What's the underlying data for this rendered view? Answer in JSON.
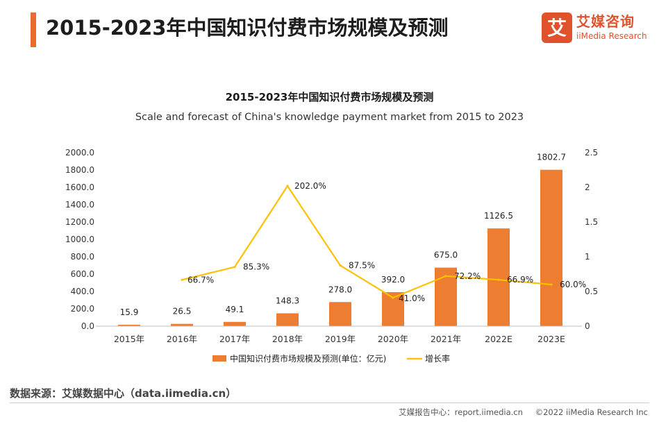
{
  "header": {
    "title": "2015-2023年中国知识付费市场规模及预测",
    "logo_cn": "艾媒咨询",
    "logo_en": "iiMedia Research",
    "accent_color": "#ec6a2c"
  },
  "source": "数据来源：艾媒数据中心（data.iimedia.cn）",
  "footer": {
    "report": "艾媒报告中心：report.iimedia.cn",
    "copyright": "©2022  iiMedia Research  Inc"
  },
  "chart_data": {
    "type": "bar",
    "title": "2015-2023年中国知识付费市场规模及预测",
    "subtitle": "Scale and forecast of China's knowledge payment market from 2015 to 2023",
    "categories": [
      "2015年",
      "2016年",
      "2017年",
      "2018年",
      "2019年",
      "2020年",
      "2021年",
      "2022E",
      "2023E"
    ],
    "series": [
      {
        "name": "中国知识付费市场规模及预测(单位：亿元)",
        "type": "bar",
        "axis": "left",
        "color": "#ed7d31",
        "values": [
          15.9,
          26.5,
          49.1,
          148.3,
          278.0,
          392.0,
          675.0,
          1126.5,
          1802.7
        ],
        "labels": [
          "15.9",
          "26.5",
          "49.1",
          "148.3",
          "278.0",
          "392.0",
          "675.0",
          "1126.5",
          "1802.7"
        ]
      },
      {
        "name": "增长率",
        "type": "line",
        "axis": "right",
        "color": "#ffc000",
        "values": [
          null,
          0.667,
          0.853,
          2.02,
          0.875,
          0.41,
          0.722,
          0.669,
          0.6
        ],
        "labels": [
          null,
          "66.7%",
          "85.3%",
          "202.0%",
          "87.5%",
          "41.0%",
          "72.2%",
          "66.9%",
          "60.0%"
        ]
      }
    ],
    "y_left": {
      "min": 0,
      "max": 2000,
      "ticks": [
        "0.0",
        "200.0",
        "400.0",
        "600.0",
        "800.0",
        "1000.0",
        "1200.0",
        "1400.0",
        "1600.0",
        "1800.0",
        "2000.0"
      ]
    },
    "y_right": {
      "min": 0,
      "max": 2.5,
      "ticks": [
        "0",
        "0.5",
        "1",
        "1.5",
        "2",
        "2.5"
      ]
    },
    "grid": false,
    "legend": "bottom"
  }
}
